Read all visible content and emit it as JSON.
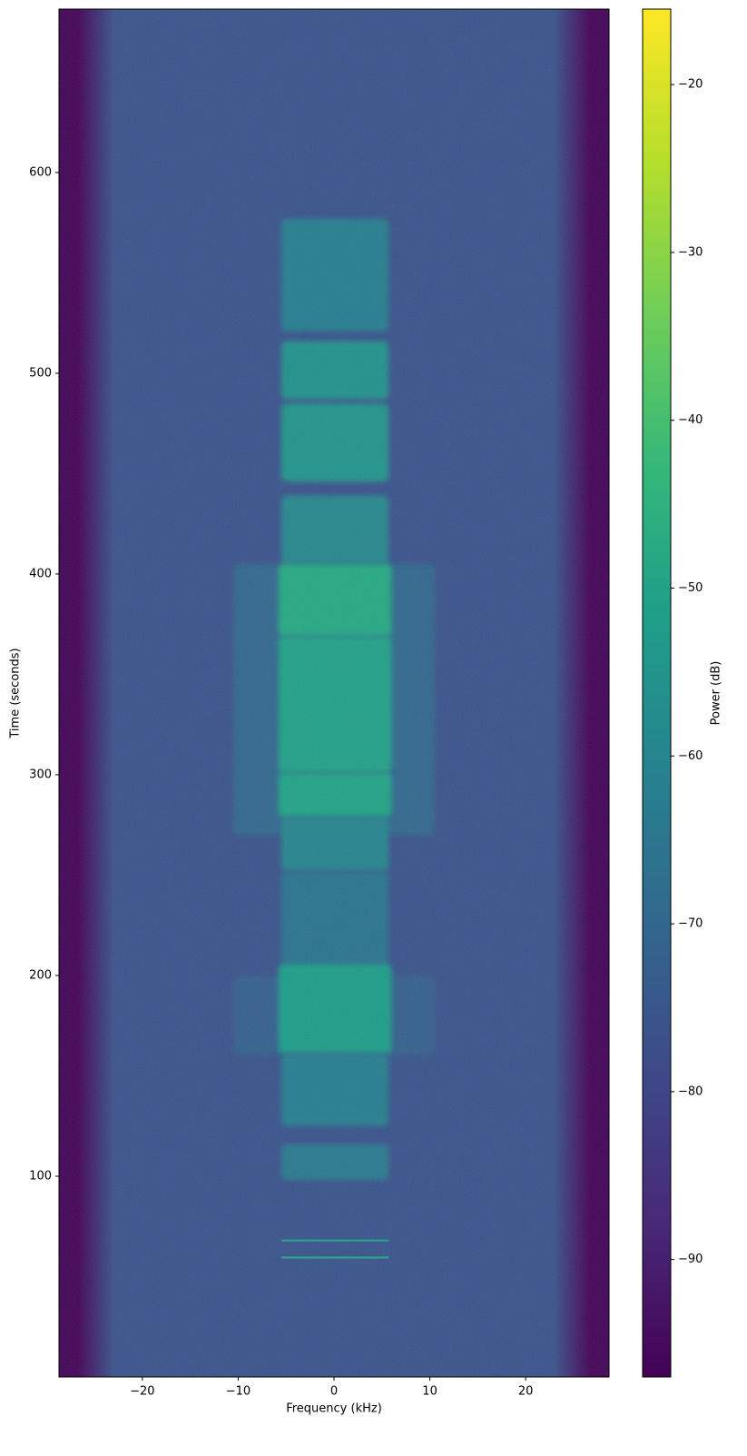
{
  "chart_data": {
    "type": "spectrogram",
    "xlabel": "Frequency (kHz)",
    "ylabel": "Time (seconds)",
    "colorbar_label": "Power (dB)",
    "colormap": "viridis",
    "xlim": [
      -28.7,
      28.7
    ],
    "ylim": [
      0,
      681.4
    ],
    "clim": [
      -97,
      -15.5
    ],
    "xticks": [
      {
        "value": -20,
        "label": "−20"
      },
      {
        "value": -10,
        "label": "−10"
      },
      0,
      10,
      20
    ],
    "yticks": [
      100,
      200,
      300,
      400,
      500,
      600
    ],
    "cticks": [
      {
        "value": -90,
        "label": "−90"
      },
      {
        "value": -80,
        "label": "−80"
      },
      {
        "value": -70,
        "label": "−70"
      },
      {
        "value": -60,
        "label": "−60"
      },
      {
        "value": -50,
        "label": "−50"
      },
      {
        "value": -40,
        "label": "−40"
      },
      {
        "value": -30,
        "label": "−30"
      },
      {
        "value": -20,
        "label": "−20"
      }
    ],
    "background": {
      "noise_power": -76,
      "edge_power": -96,
      "rolloff": [
        -23,
        23
      ]
    },
    "bursts": [
      {
        "t": [
          270,
          405
        ],
        "f": [
          -10.5,
          10.5
        ],
        "power": -70
      },
      {
        "t": [
          160,
          200
        ],
        "f": [
          -10.5,
          10.5
        ],
        "power": -72
      },
      {
        "t": [
          521,
          577
        ],
        "f": [
          -5.5,
          5.7
        ],
        "power": -62
      },
      {
        "t": [
          487,
          516
        ],
        "f": [
          -5.5,
          5.7
        ],
        "power": -56
      },
      {
        "t": [
          446,
          485
        ],
        "f": [
          -5.5,
          5.7
        ],
        "power": -55
      },
      {
        "t": [
          405,
          439
        ],
        "f": [
          -5.5,
          5.7
        ],
        "power": -59
      },
      {
        "t": [
          369,
          405
        ],
        "f": [
          -5.8,
          6
        ],
        "power": -48
      },
      {
        "t": [
          301,
          369
        ],
        "f": [
          -5.8,
          6
        ],
        "power": -51
      },
      {
        "t": [
          279,
          301
        ],
        "f": [
          -5.8,
          6
        ],
        "power": -50
      },
      {
        "t": [
          252,
          279
        ],
        "f": [
          -5.5,
          5.7
        ],
        "power": -60
      },
      {
        "t": [
          206,
          252
        ],
        "f": [
          -5.5,
          5.7
        ],
        "power": -66
      },
      {
        "t": [
          161,
          206
        ],
        "f": [
          -5.8,
          6
        ],
        "power": -52
      },
      {
        "t": [
          125,
          161
        ],
        "f": [
          -5.5,
          5.7
        ],
        "power": -62
      },
      {
        "t": [
          98,
          116
        ],
        "f": [
          -5.5,
          5.7
        ],
        "power": -64
      },
      {
        "t": [
          67.5,
          68.5
        ],
        "f": [
          -5.5,
          5.7
        ],
        "power": -52
      },
      {
        "t": [
          59,
          60
        ],
        "f": [
          -5.5,
          5.7
        ],
        "power": -50
      }
    ]
  }
}
